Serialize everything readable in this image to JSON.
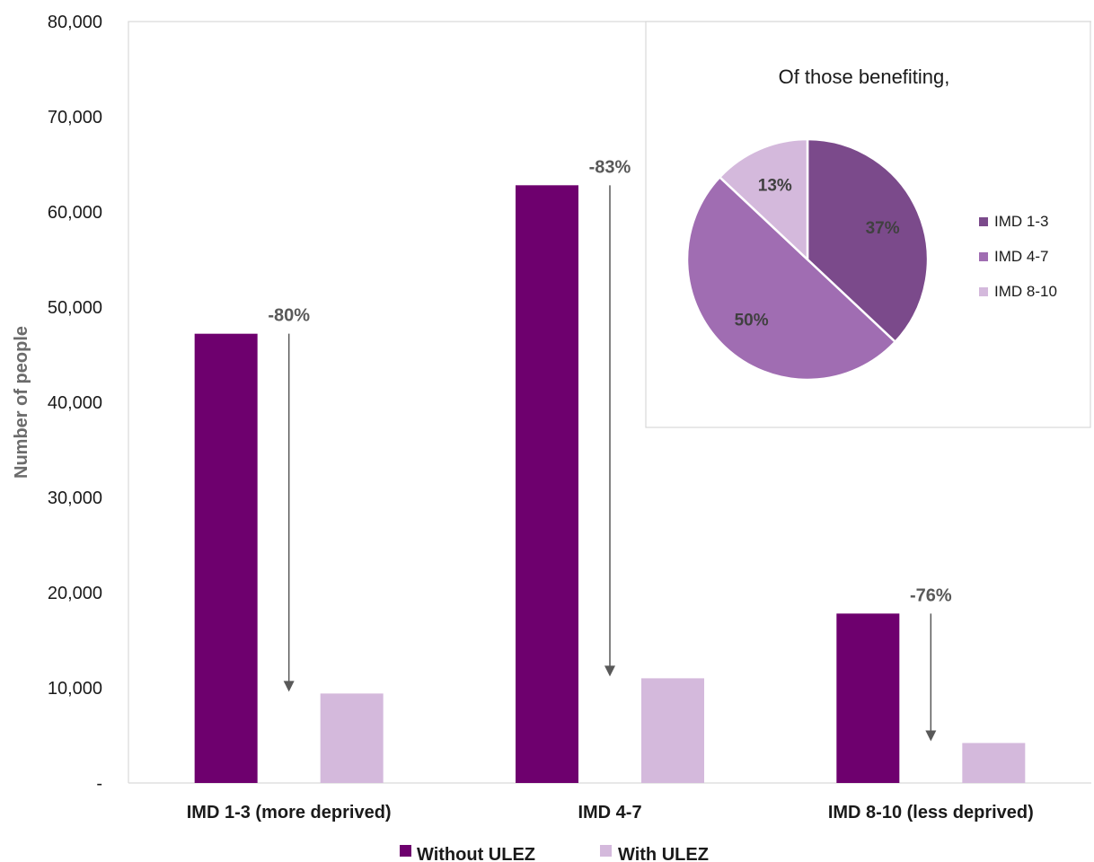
{
  "chart_data": [
    {
      "type": "bar",
      "categories": [
        "IMD 1-3 (more deprived)",
        "IMD 4-7",
        "IMD 8-10 (less deprived)"
      ],
      "series": [
        {
          "name": "Without ULEZ",
          "values": [
            47200,
            62800,
            17800
          ],
          "color": "#6e006e"
        },
        {
          "name": "With ULEZ",
          "values": [
            9400,
            11000,
            4200
          ],
          "color": "#d4b9dc"
        }
      ],
      "change_labels": [
        "-80%",
        "-83%",
        "-76%"
      ],
      "ylabel": "Number of people",
      "ylim": [
        0,
        80000
      ],
      "yticks": [
        0,
        10000,
        20000,
        30000,
        40000,
        50000,
        60000,
        70000,
        80000
      ],
      "ytick_labels": [
        "-",
        "10,000",
        "20,000",
        "30,000",
        "40,000",
        "50,000",
        "60,000",
        "70,000",
        "80,000"
      ],
      "legend_position": "bottom"
    },
    {
      "type": "pie",
      "title": "Of those benefiting,",
      "labels": [
        "IMD 1-3",
        "IMD 4-7",
        "IMD 8-10"
      ],
      "values": [
        37,
        50,
        13
      ],
      "value_labels": [
        "37%",
        "50%",
        "13%"
      ],
      "colors": [
        "#7b4a8b",
        "#a06db2",
        "#d4b9dc"
      ],
      "legend_position": "right"
    }
  ]
}
